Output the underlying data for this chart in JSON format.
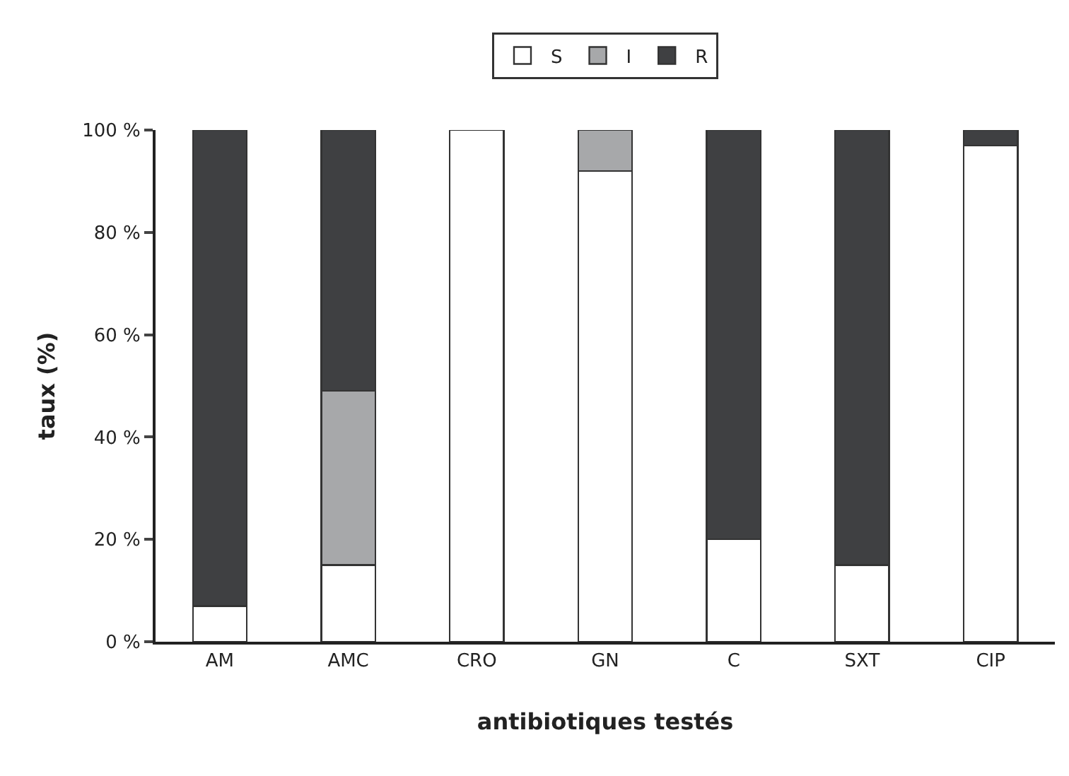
{
  "chart_data": {
    "type": "bar",
    "stacked": true,
    "xlabel": "antibiotiques testés",
    "ylabel": "taux (%)",
    "categories": [
      "AM",
      "AMC",
      "CRO",
      "GN",
      "C",
      "SXT",
      "CIP"
    ],
    "series": [
      {
        "name": "S",
        "color": "#ffffff",
        "values": [
          7,
          15,
          100,
          92,
          20,
          15,
          97
        ]
      },
      {
        "name": "I",
        "color": "#a7a8aa",
        "values": [
          0,
          34,
          0,
          8,
          0,
          0,
          0
        ]
      },
      {
        "name": "R",
        "color": "#3f4042",
        "values": [
          93,
          51,
          0,
          0,
          80,
          85,
          3
        ]
      }
    ],
    "ylim": [
      0,
      100
    ],
    "yticks": [
      {
        "value": 0,
        "label": "0 %"
      },
      {
        "value": 20,
        "label": "20 %"
      },
      {
        "value": 40,
        "label": "40 %"
      },
      {
        "value": 60,
        "label": "60 %"
      },
      {
        "value": 80,
        "label": "80 %"
      },
      {
        "value": 100,
        "label": "100 %"
      }
    ],
    "legend": "top"
  }
}
